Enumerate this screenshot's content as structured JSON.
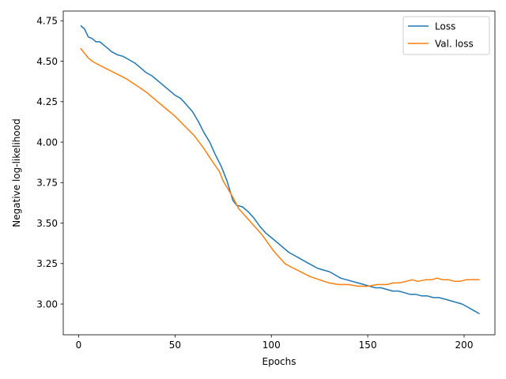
{
  "chart_data": {
    "type": "line",
    "xlabel": "Epochs",
    "ylabel": "Negative log-likelihood",
    "xlim": [
      -8,
      216
    ],
    "ylim": [
      2.81,
      4.81
    ],
    "xticks": [
      0,
      50,
      100,
      150,
      200
    ],
    "yticks": [
      3.0,
      3.25,
      3.5,
      3.75,
      4.0,
      4.25,
      4.5,
      4.75
    ],
    "ytick_labels": [
      "3.00",
      "3.25",
      "3.50",
      "3.75",
      "4.00",
      "4.25",
      "4.50",
      "4.75"
    ],
    "grid": false,
    "legend_position": "top-right",
    "series": [
      {
        "name": "Loss",
        "color": "#1f77b4",
        "x": [
          1,
          3,
          5,
          7,
          9,
          11,
          13,
          15,
          17,
          20,
          23,
          26,
          29,
          32,
          35,
          38,
          41,
          44,
          47,
          50,
          53,
          56,
          59,
          62,
          65,
          68,
          71,
          74,
          77,
          80,
          82,
          85,
          88,
          91,
          94,
          97,
          100,
          103,
          106,
          109,
          112,
          115,
          118,
          121,
          124,
          127,
          130,
          133,
          136,
          139,
          142,
          145,
          148,
          151,
          154,
          157,
          160,
          163,
          166,
          169,
          172,
          175,
          178,
          181,
          184,
          187,
          190,
          193,
          196,
          199,
          202,
          205,
          208
        ],
        "y": [
          4.72,
          4.7,
          4.65,
          4.64,
          4.62,
          4.62,
          4.6,
          4.58,
          4.56,
          4.54,
          4.53,
          4.51,
          4.49,
          4.46,
          4.43,
          4.41,
          4.38,
          4.35,
          4.32,
          4.29,
          4.27,
          4.23,
          4.19,
          4.13,
          4.06,
          4.0,
          3.92,
          3.85,
          3.76,
          3.64,
          3.61,
          3.6,
          3.57,
          3.53,
          3.48,
          3.44,
          3.41,
          3.38,
          3.35,
          3.32,
          3.3,
          3.28,
          3.26,
          3.24,
          3.22,
          3.21,
          3.2,
          3.18,
          3.16,
          3.15,
          3.14,
          3.13,
          3.12,
          3.11,
          3.1,
          3.1,
          3.09,
          3.08,
          3.08,
          3.07,
          3.06,
          3.06,
          3.05,
          3.05,
          3.04,
          3.04,
          3.03,
          3.02,
          3.01,
          3.0,
          2.98,
          2.96,
          2.94
        ]
      },
      {
        "name": "Val. loss",
        "color": "#ff7f0e",
        "x": [
          1,
          3,
          5,
          7,
          10,
          15,
          20,
          25,
          30,
          35,
          40,
          45,
          50,
          55,
          60,
          65,
          70,
          73,
          75,
          78,
          80,
          83,
          86,
          89,
          92,
          95,
          98,
          101,
          104,
          107,
          110,
          115,
          120,
          125,
          130,
          135,
          140,
          145,
          150,
          155,
          160,
          163,
          166,
          170,
          173,
          176,
          180,
          183,
          186,
          189,
          192,
          195,
          198,
          201,
          204,
          208
        ],
        "y": [
          4.58,
          4.55,
          4.52,
          4.5,
          4.48,
          4.45,
          4.42,
          4.39,
          4.35,
          4.31,
          4.26,
          4.21,
          4.16,
          4.1,
          4.04,
          3.96,
          3.87,
          3.82,
          3.76,
          3.7,
          3.66,
          3.59,
          3.55,
          3.51,
          3.47,
          3.43,
          3.38,
          3.33,
          3.29,
          3.25,
          3.23,
          3.2,
          3.17,
          3.15,
          3.13,
          3.12,
          3.12,
          3.11,
          3.11,
          3.12,
          3.12,
          3.13,
          3.13,
          3.14,
          3.15,
          3.14,
          3.15,
          3.15,
          3.16,
          3.15,
          3.15,
          3.14,
          3.14,
          3.15,
          3.15,
          3.15
        ]
      }
    ]
  }
}
